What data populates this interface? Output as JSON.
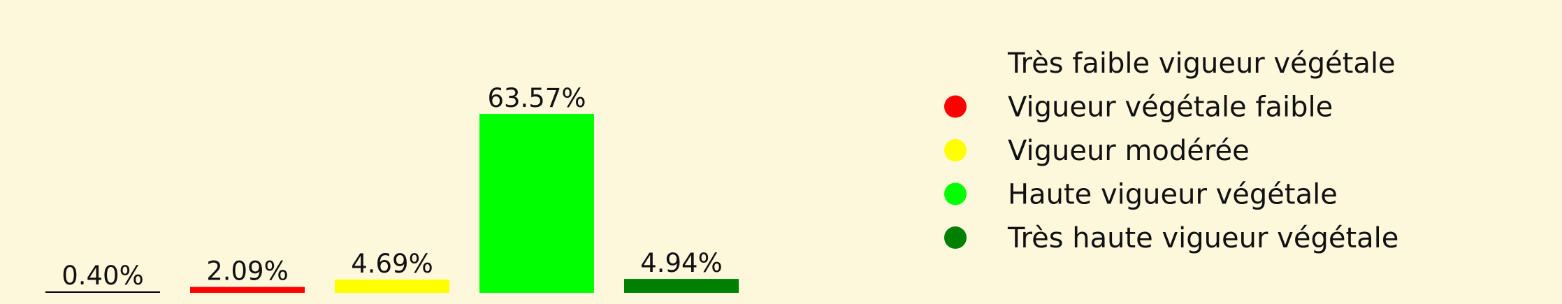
{
  "chart_data": {
    "type": "bar",
    "categories": [
      "Très faible vigueur végétale",
      "Vigueur végétale faible",
      "Vigueur modérée",
      "Haute vigueur végétale",
      "Très haute vigueur végétale"
    ],
    "values": [
      0.4,
      2.09,
      4.69,
      63.57,
      4.94
    ],
    "value_labels": [
      "0.40%",
      "2.09%",
      "4.69%",
      "63.57%",
      "4.94%"
    ],
    "colors": [
      "#000000",
      "#ff0000",
      "#ffff00",
      "#00ff00",
      "#008000"
    ],
    "legend_marker_colors": [
      "none",
      "#ff0000",
      "#ffff00",
      "#00ff00",
      "#008000"
    ],
    "ylim": [
      0,
      63.57
    ],
    "legend_position": "right",
    "background": "#fdf7dc",
    "grid": false,
    "axes_visible": false
  }
}
